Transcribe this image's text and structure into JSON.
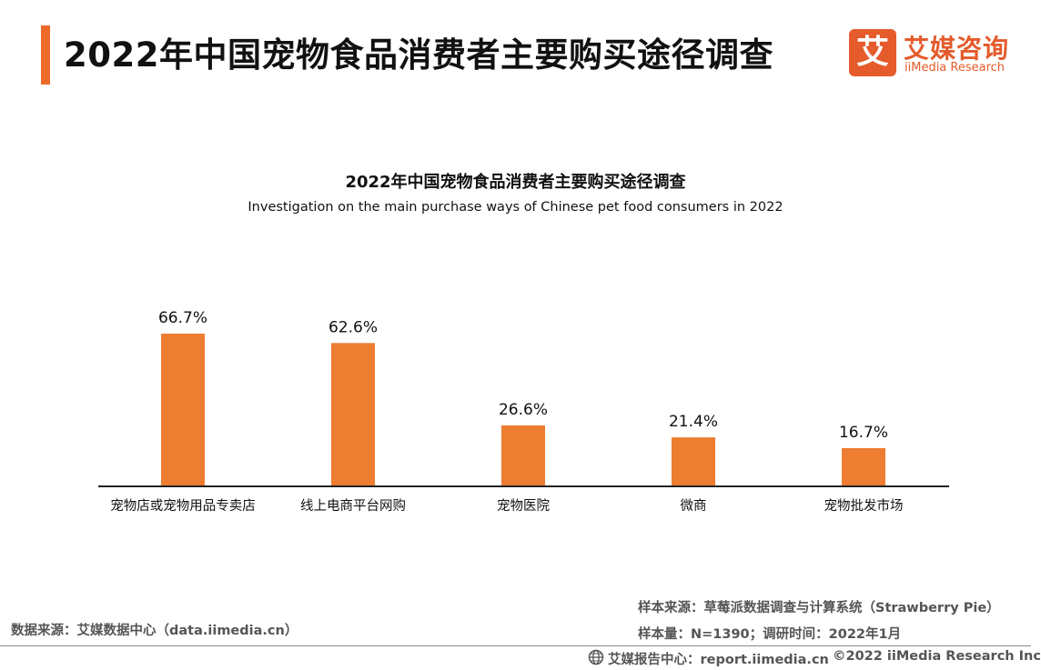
{
  "header": {
    "title": "2022年中国宠物食品消费者主要购买途径调查",
    "accent_color": "#ee6a2a"
  },
  "logo": {
    "mark_char": "艾",
    "name_cn": "艾媒咨询",
    "name_en": "iiMedia Research",
    "color": "#e55b2b"
  },
  "chart_data": {
    "type": "bar",
    "title": "2022年中国宠物食品消费者主要购买途径调查",
    "subtitle": "Investigation on the main purchase ways of Chinese pet food consumers in 2022",
    "categories": [
      "宠物店或宠物用品专卖店",
      "线上电商平台网购",
      "宠物医院",
      "微商",
      "宠物批发市场"
    ],
    "values": [
      66.7,
      62.6,
      26.6,
      21.4,
      16.7
    ],
    "value_labels": [
      "66.7%",
      "62.6%",
      "26.6%",
      "21.4%",
      "16.7%"
    ],
    "unit": "%",
    "xlabel": "",
    "ylabel": "",
    "ylim": [
      0,
      66.7
    ],
    "grid": false,
    "legend": "none",
    "bar_color": "#ed7d31"
  },
  "notes": {
    "data_source": "数据来源：艾媒数据中心（data.iimedia.cn）",
    "sample_source": "样本来源：草莓派数据调查与计算系统（Strawberry Pie）",
    "sample_size": "样本量：N=1390；调研时间：2022年1月"
  },
  "footer": {
    "report_center": "艾媒报告中心：report.iimedia.cn",
    "copyright": "©2022  iiMedia Research  Inc"
  }
}
